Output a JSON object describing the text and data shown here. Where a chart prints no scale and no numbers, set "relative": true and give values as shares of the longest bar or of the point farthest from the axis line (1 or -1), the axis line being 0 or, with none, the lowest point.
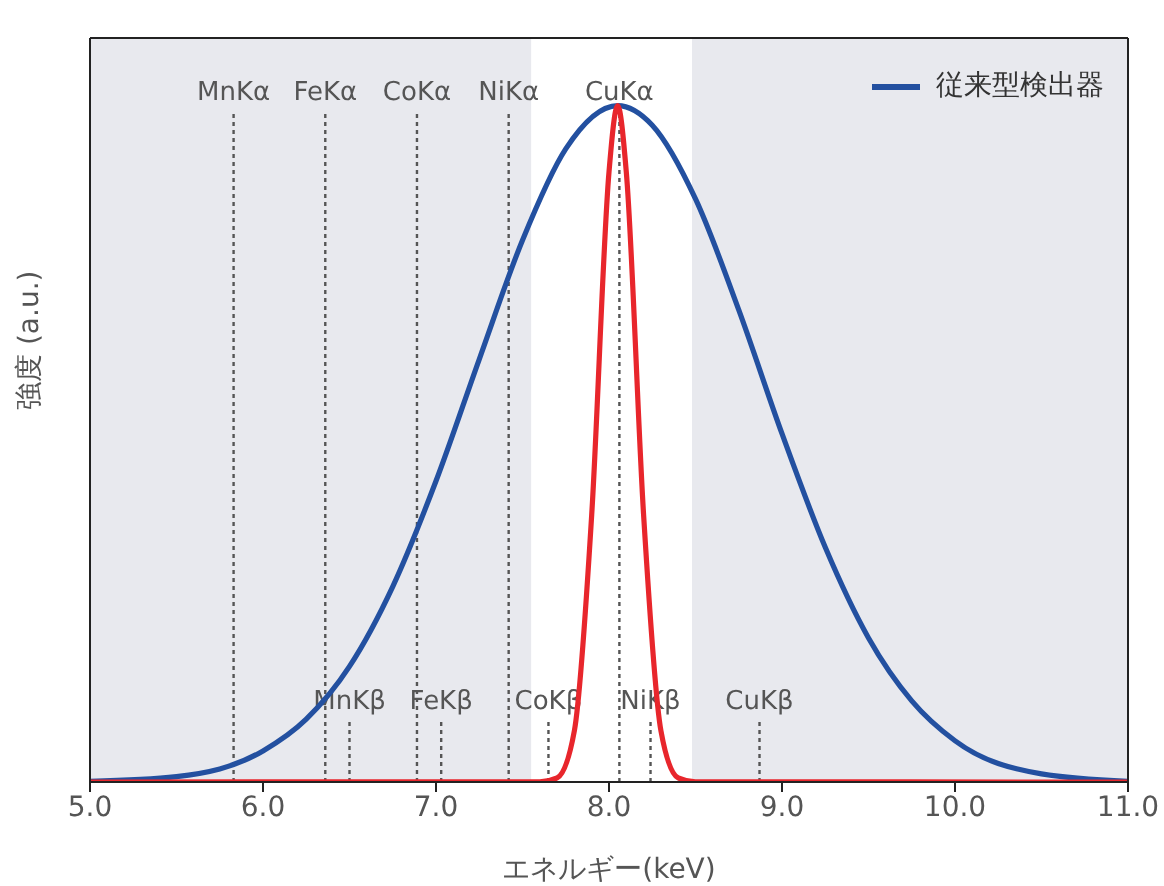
{
  "chart_data": {
    "type": "line",
    "relative": true,
    "xlabel": "エネルギー(keV)",
    "ylabel": "強度 (a.u.)",
    "xlim": [
      5,
      11
    ],
    "xticks": [
      {
        "value": 5,
        "label": "5.0"
      },
      {
        "value": 6,
        "label": "6.0"
      },
      {
        "value": 7,
        "label": "7.0"
      },
      {
        "value": 8,
        "label": "8.0"
      },
      {
        "value": 9,
        "label": "9.0"
      },
      {
        "value": 10,
        "label": "10.0"
      },
      {
        "value": 11,
        "label": "11.0"
      }
    ],
    "series": [
      {
        "name": "従来型検出器",
        "color": "#2350a0",
        "x": [
          5,
          5.5,
          6,
          6.25,
          6.5,
          6.75,
          7,
          7.25,
          7.5,
          7.75,
          8.05,
          8.25,
          8.5,
          8.75,
          9,
          9.25,
          9.5,
          9.75,
          10,
          10.5,
          11
        ],
        "values": [
          0.001,
          0.008,
          0.046,
          0.093,
          0.171,
          0.289,
          0.445,
          0.625,
          0.801,
          0.936,
          1,
          0.971,
          0.862,
          0.698,
          0.515,
          0.347,
          0.213,
          0.12,
          0.061,
          0.012,
          0.001
        ]
      },
      {
        "color": "#e8262c",
        "x": [
          5,
          7.6,
          7.7,
          7.8,
          7.9,
          8,
          8.05,
          8.1,
          8.2,
          8.3,
          8.4,
          8.5,
          11
        ],
        "values": [
          0,
          0.0002,
          0.006,
          0.076,
          0.395,
          0.902,
          1,
          0.902,
          0.395,
          0.076,
          0.006,
          0.0002,
          0
        ]
      }
    ],
    "bands": [
      {
        "axis": "x",
        "from": 5,
        "to": 7.55,
        "color": "#e8e9ee"
      },
      {
        "axis": "x",
        "from": 8.48,
        "to": 11,
        "color": "#e8e9ee"
      }
    ],
    "ref_lines": [
      {
        "axis": "x",
        "value": 5.83,
        "label": "MnKα",
        "color": "#555555",
        "line_style": "dotted"
      },
      {
        "axis": "x",
        "value": 6.36,
        "label": "FeKα",
        "color": "#555555",
        "line_style": "dotted"
      },
      {
        "axis": "x",
        "value": 6.89,
        "label": "CoKα",
        "color": "#555555",
        "line_style": "dotted"
      },
      {
        "axis": "x",
        "value": 7.42,
        "label": "NiKα",
        "color": "#555555",
        "line_style": "dotted"
      },
      {
        "axis": "x",
        "value": 8.06,
        "label": "CuKα",
        "color": "#555555",
        "line_style": "dotted"
      },
      {
        "axis": "x",
        "value": 6.5,
        "label": "MnKβ",
        "color": "#555555",
        "line_style": "dotted"
      },
      {
        "axis": "x",
        "value": 7.03,
        "label": "FeKβ",
        "color": "#555555",
        "line_style": "dotted"
      },
      {
        "axis": "x",
        "value": 7.65,
        "label": "CoKβ",
        "color": "#555555",
        "line_style": "dotted"
      },
      {
        "axis": "x",
        "value": 8.24,
        "label": "NiKβ",
        "color": "#555555",
        "line_style": "dotted"
      },
      {
        "axis": "x",
        "value": 8.87,
        "label": "CuKβ",
        "color": "#555555",
        "line_style": "dotted"
      }
    ],
    "legend": "top right",
    "grid": false,
    "marker": "none",
    "line_style": "solid"
  }
}
